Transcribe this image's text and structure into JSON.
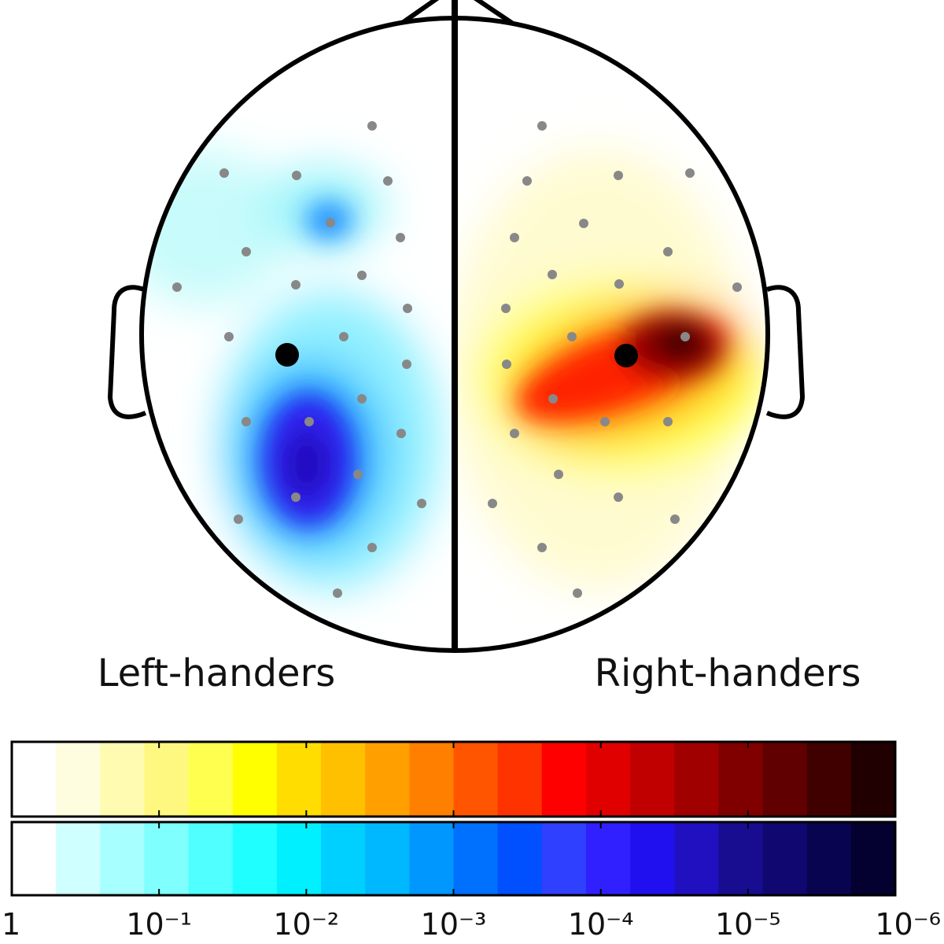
{
  "labels": {
    "left": "Left-handers",
    "right": "Right-handers"
  },
  "colorbar": {
    "ticks": [
      "1",
      "10⁻¹",
      "10⁻²",
      "10⁻³",
      "10⁻⁴",
      "10⁻⁵",
      "10⁻⁶"
    ],
    "warm_colors": [
      "#ffffff",
      "#fffde0",
      "#fffbb0",
      "#fff880",
      "#ffff50",
      "#ffff00",
      "#ffdd00",
      "#ffc000",
      "#ffa000",
      "#ff8000",
      "#ff5500",
      "#ff3300",
      "#ff0000",
      "#e00000",
      "#c00000",
      "#a00000",
      "#800000",
      "#600000",
      "#400000",
      "#200000"
    ],
    "cool_colors": [
      "#ffffff",
      "#d0ffff",
      "#a8ffff",
      "#80ffff",
      "#50ffff",
      "#20ffff",
      "#00f0ff",
      "#00d0ff",
      "#00b8ff",
      "#0098ff",
      "#0070ff",
      "#0050ff",
      "#3040ff",
      "#3020ff",
      "#2010f0",
      "#2010c0",
      "#180c90",
      "#100870",
      "#080450",
      "#040030"
    ]
  }
}
